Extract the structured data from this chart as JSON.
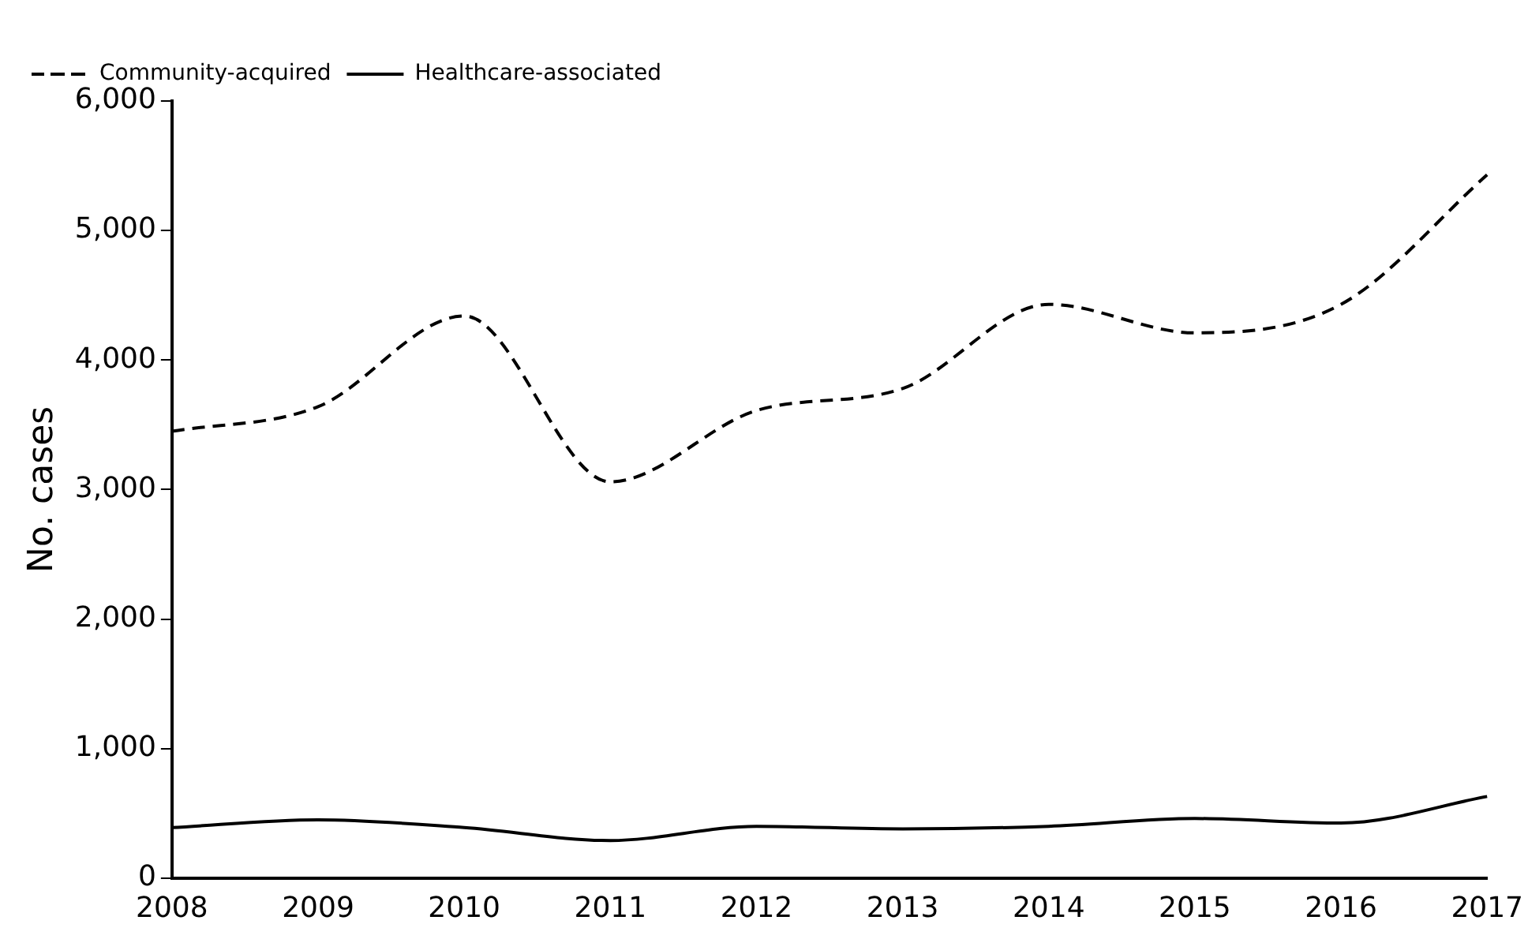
{
  "chart_data": {
    "type": "line",
    "ylabel": "No. cases",
    "categories": [
      "2008",
      "2009",
      "2010",
      "2011",
      "2012",
      "2013",
      "2014",
      "2015",
      "2016",
      "2017"
    ],
    "series": [
      {
        "name": "Community-acquired",
        "color": "#000000",
        "line_style": "dashed",
        "values": [
          3450,
          3640,
          4340,
          3060,
          3610,
          3780,
          4430,
          4210,
          4430,
          5430
        ]
      },
      {
        "name": "Healthcare-associated",
        "color": "#000000",
        "line_style": "solid",
        "values": [
          390,
          450,
          390,
          290,
          400,
          380,
          400,
          460,
          425,
          630
        ]
      }
    ],
    "ylim": [
      0,
      6000
    ],
    "yticks": [
      {
        "value": 0,
        "label": "0"
      },
      {
        "value": 1000,
        "label": "1,000"
      },
      {
        "value": 2000,
        "label": "2,000"
      },
      {
        "value": 3000,
        "label": "3,000"
      },
      {
        "value": 4000,
        "label": "4,000"
      },
      {
        "value": 5000,
        "label": "5,000"
      },
      {
        "value": 6000,
        "label": "6,000"
      }
    ],
    "grid": false,
    "legend": "top left",
    "marker": "none"
  }
}
